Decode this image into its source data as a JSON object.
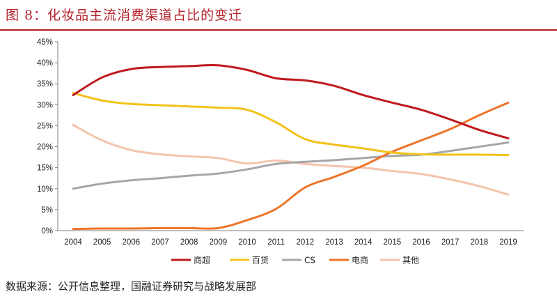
{
  "title": "图 8：化妆品主流消费渠道占比的变迁",
  "source": "数据来源：公开信息整理，国融证券研究与战略发展部",
  "chart_data": {
    "type": "line",
    "x": [
      "2004",
      "2005",
      "2006",
      "2007",
      "2008",
      "2009",
      "2010",
      "2011",
      "2012",
      "2013",
      "2014",
      "2015",
      "2016",
      "2017",
      "2018",
      "2019"
    ],
    "y_ticks": [
      "0%",
      "5%",
      "10%",
      "15%",
      "20%",
      "25%",
      "30%",
      "35%",
      "40%",
      "45%"
    ],
    "ylim": [
      0,
      45
    ],
    "legend_position": "bottom",
    "grid": false,
    "series": [
      {
        "name": "商超",
        "color": "#c0191e",
        "values": [
          32.3,
          36.5,
          38.5,
          39.0,
          39.2,
          39.4,
          38.3,
          36.3,
          35.8,
          34.5,
          32.3,
          30.5,
          28.8,
          26.5,
          24.0,
          22.0
        ]
      },
      {
        "name": "百货",
        "color": "#f2c21a",
        "values": [
          32.8,
          31.0,
          30.2,
          29.9,
          29.6,
          29.3,
          28.8,
          25.8,
          21.8,
          20.5,
          19.6,
          18.6,
          18.2,
          18.1,
          18.1,
          18.0
        ]
      },
      {
        "name": "CS",
        "color": "#a6a6a6",
        "values": [
          10.0,
          11.2,
          12.0,
          12.5,
          13.1,
          13.6,
          14.6,
          15.9,
          16.4,
          16.8,
          17.3,
          17.8,
          18.1,
          19.0,
          20.0,
          21.0
        ]
      },
      {
        "name": "电商",
        "color": "#ed7428",
        "values": [
          0.4,
          0.5,
          0.5,
          0.6,
          0.6,
          0.6,
          2.5,
          5.2,
          10.3,
          12.8,
          15.5,
          18.8,
          21.5,
          24.2,
          27.5,
          30.5
        ]
      },
      {
        "name": "其他",
        "color": "#f4c4ab",
        "values": [
          25.2,
          21.5,
          19.2,
          18.2,
          17.7,
          17.3,
          16.0,
          16.7,
          15.9,
          15.4,
          15.0,
          14.2,
          13.5,
          12.2,
          10.6,
          8.6
        ]
      }
    ]
  }
}
